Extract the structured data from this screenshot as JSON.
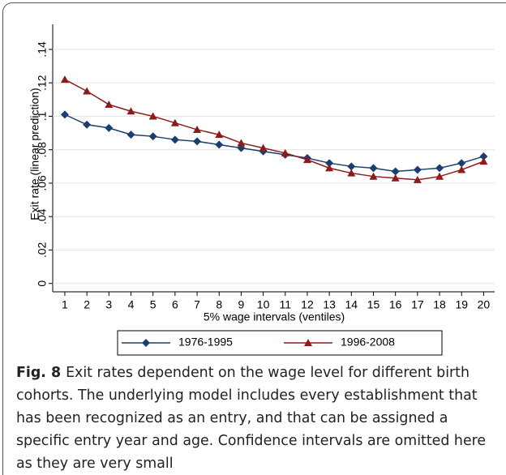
{
  "chart_data": {
    "type": "line",
    "y_label": "Exit rate (linear prediction)",
    "x_label": "5% wage intervals (ventiles)",
    "x": [
      1,
      2,
      3,
      4,
      5,
      6,
      7,
      8,
      9,
      10,
      11,
      12,
      13,
      14,
      15,
      16,
      17,
      18,
      19,
      20
    ],
    "xlim": [
      0.45,
      20.5
    ],
    "xticks": [
      1,
      2,
      3,
      4,
      5,
      6,
      7,
      8,
      9,
      10,
      11,
      12,
      13,
      14,
      15,
      16,
      17,
      18,
      19,
      20
    ],
    "ylim": [
      -0.005,
      0.155
    ],
    "yticks": [
      0,
      {
        "value": 0.02,
        "label": ".02"
      },
      {
        "value": 0.04,
        "label": ".04"
      },
      {
        "value": 0.06,
        "label": ".06"
      },
      {
        "value": 0.08,
        "label": ".08"
      },
      {
        "value": 0.1,
        "label": ".1"
      },
      {
        "value": 0.12,
        "label": ".12"
      },
      {
        "value": 0.14,
        "label": ".14"
      }
    ],
    "grid": true,
    "legend": "bottom",
    "series": [
      {
        "name": "1976-1995",
        "color": "#1a3e6e",
        "marker": "diamond",
        "values": [
          0.101,
          0.095,
          0.093,
          0.089,
          0.088,
          0.086,
          0.085,
          0.083,
          0.081,
          0.079,
          0.077,
          0.075,
          0.072,
          0.07,
          0.069,
          0.067,
          0.068,
          0.069,
          0.072,
          0.076
        ]
      },
      {
        "name": "1996-2008",
        "color": "#8c1c1c",
        "marker": "triangle",
        "values": [
          0.122,
          0.115,
          0.107,
          0.103,
          0.1,
          0.096,
          0.092,
          0.089,
          0.084,
          0.081,
          0.078,
          0.074,
          0.069,
          0.066,
          0.064,
          0.063,
          0.062,
          0.064,
          0.068,
          0.073
        ]
      }
    ]
  },
  "caption": {
    "label": "Fig. 8",
    "text": "Exit rates dependent on the wage level for different birth cohorts. The underlying model includes every establishment that has been recognized as an entry, and that can be assigned a specific entry year and age. Confidence intervals are omitted here as they are very small"
  }
}
